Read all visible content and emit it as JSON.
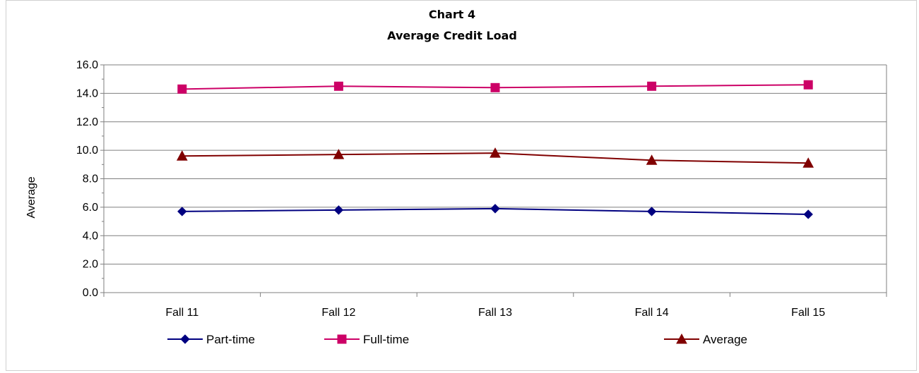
{
  "chart_data": {
    "type": "line",
    "title": "Chart 4",
    "subtitle": "Average Credit Load",
    "xlabel": "",
    "ylabel": "Average",
    "categories": [
      "Fall 11",
      "Fall 12",
      "Fall 13",
      "Fall 14",
      "Fall 15"
    ],
    "ylim": [
      0,
      16
    ],
    "y_ticks": [
      "0.0",
      "2.0",
      "4.0",
      "6.0",
      "8.0",
      "10.0",
      "12.0",
      "14.0",
      "16.0"
    ],
    "grid": true,
    "legend_position": "bottom",
    "series": [
      {
        "name": "Part-time",
        "values": [
          5.7,
          5.8,
          5.9,
          5.7,
          5.5
        ],
        "color": "#000080",
        "marker": "diamond"
      },
      {
        "name": "Full-time",
        "values": [
          14.3,
          14.5,
          14.4,
          14.5,
          14.6
        ],
        "color": "#CC0066",
        "marker": "square"
      },
      {
        "name": "Average",
        "values": [
          9.6,
          9.7,
          9.8,
          9.3,
          9.1
        ],
        "color": "#800000",
        "marker": "triangle"
      }
    ]
  }
}
